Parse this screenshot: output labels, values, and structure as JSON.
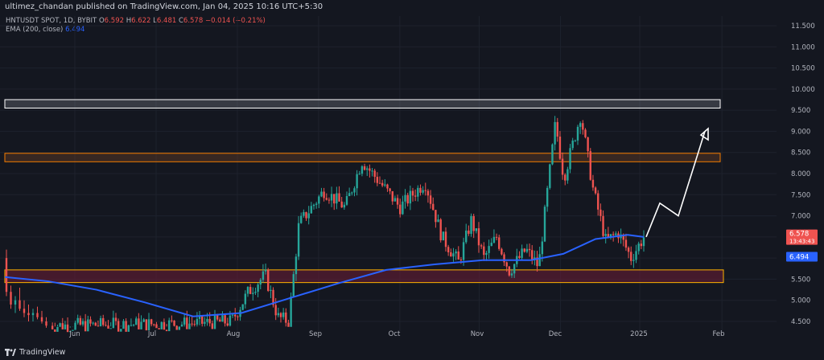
{
  "header": {
    "publisher_line": "ultimez_chandan published on TradingView.com, Jan 04, 2025 10:16 UTC+5:30"
  },
  "legend": {
    "symbol": "HNTUSDT SPOT, 1D, BYBIT",
    "o_label": "O",
    "o_value": "6.592",
    "h_label": "H",
    "h_value": "6.622",
    "l_label": "L",
    "l_value": "6.481",
    "c_label": "C",
    "c_value": "6.578",
    "change": "−0.014 (−0.21%)",
    "ema_label": "EMA (200, close)",
    "ema_value": "6.494"
  },
  "footer": {
    "brand": "TradingView"
  },
  "chart_data": {
    "type": "candlestick",
    "title": "HNTUSDT SPOT, 1D, BYBIT",
    "ylim": [
      4.3,
      11.8
    ],
    "y_ticks": [
      "4.500",
      "5.000",
      "5.500",
      "6.000",
      "6.500",
      "7.000",
      "7.500",
      "8.000",
      "8.500",
      "9.000",
      "9.500",
      "10.000",
      "10.500",
      "11.000",
      "11.500"
    ],
    "x_ticks": [
      "Jun",
      "Jul",
      "Aug",
      "Sep",
      "Oct",
      "Nov",
      "Dec",
      "2025",
      "Feb"
    ],
    "last_price_label": "6.578",
    "countdown_label": "13:43:43",
    "ema_label": "6.494",
    "zones": [
      {
        "name": "resistance-top",
        "from": 9.55,
        "to": 9.75,
        "color": "#787b86"
      },
      {
        "name": "resistance-mid",
        "from": 8.28,
        "to": 8.48,
        "color": "#f57c00"
      },
      {
        "name": "support",
        "from": 5.42,
        "to": 5.72,
        "color": "#ffb300"
      }
    ],
    "forecast_path": [
      [
        2024.997,
        6.5
      ],
      [
        2025.025,
        7.3
      ],
      [
        2025.05,
        7.0
      ],
      [
        2025.13,
        9.0
      ]
    ],
    "series": [
      {
        "name": "EMA (200, close)",
        "values": [
          [
            2024.37,
            5.55
          ],
          [
            2024.45,
            5.3
          ],
          [
            2024.52,
            4.95
          ],
          [
            2024.6,
            4.62
          ],
          [
            2024.66,
            4.65
          ],
          [
            2024.72,
            5.05
          ],
          [
            2024.78,
            5.3
          ],
          [
            2024.85,
            5.55
          ],
          [
            2024.9,
            5.72
          ],
          [
            2024.95,
            6.0
          ],
          [
            2024.985,
            6.45
          ],
          [
            2025.0,
            6.5
          ]
        ]
      }
    ],
    "candles": [
      [
        6.0,
        6.2,
        5.1,
        5.2
      ],
      [
        5.2,
        5.35,
        4.8,
        4.9
      ],
      [
        4.9,
        5.1,
        4.7,
        5.0
      ],
      [
        5.0,
        5.3,
        4.75,
        4.8
      ],
      [
        4.8,
        5.0,
        4.6,
        4.7
      ],
      [
        4.7,
        4.9,
        4.5,
        4.65
      ],
      [
        4.65,
        4.8,
        4.5,
        4.7
      ],
      [
        4.7,
        4.85,
        4.55,
        4.6
      ],
      [
        4.6,
        4.75,
        4.45,
        4.5
      ],
      [
        4.5,
        4.6,
        4.35,
        4.4
      ]
    ]
  }
}
